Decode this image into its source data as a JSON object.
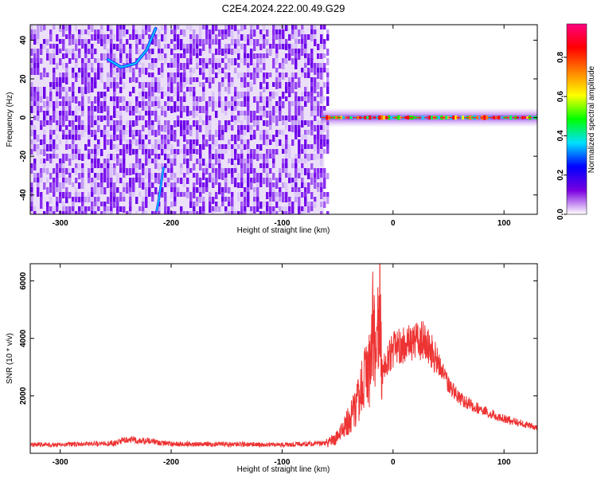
{
  "title": "C2E4.2024.222.00.49.G29",
  "chart_data": [
    {
      "type": "heatmap",
      "xlabel": "Height of straight line (km)",
      "ylabel": "Frequency (Hz)",
      "xlim": [
        -327,
        130
      ],
      "ylim": [
        -50,
        48
      ],
      "x_ticks": [
        -300,
        -200,
        -100,
        0,
        100
      ],
      "x_tick_labels": [
        "-300",
        "-200",
        "-100",
        "0",
        "100"
      ],
      "y_ticks": [
        -40,
        -20,
        0,
        20,
        40
      ],
      "y_tick_labels": [
        "-40",
        "-20",
        "0",
        "20",
        "40"
      ],
      "colorbar": {
        "label": "Normalized spectral amplitude",
        "range": [
          0.0,
          0.97
        ],
        "ticks": [
          0.0,
          0.2,
          0.4,
          0.6,
          0.8
        ],
        "tick_labels": [
          "0.0",
          "0.2",
          "0.4",
          "0.6",
          "0.8"
        ],
        "colormap": [
          "#ffffff",
          "#7a00e0",
          "#0000ff",
          "#00e0ff",
          "#00ff00",
          "#ffff00",
          "#ff8000",
          "#ff0000",
          "#ff0080"
        ]
      },
      "features": {
        "noise_region_x": [
          -327,
          -62
        ],
        "signal_line": {
          "x_range": [
            -65,
            130
          ],
          "frequency": 0,
          "peak_amplitude": 0.97
        },
        "noise_arc": [
          [
            -257,
            30
          ],
          [
            -245,
            26
          ],
          [
            -232,
            28
          ],
          [
            -222,
            35
          ],
          [
            -214,
            46
          ]
        ],
        "noise_streak": [
          [
            -207,
            -26
          ],
          [
            -209,
            -34
          ],
          [
            -211,
            -42
          ],
          [
            -213,
            -48
          ]
        ]
      }
    },
    {
      "type": "line",
      "xlabel": "Height of straight line (km)",
      "ylabel": "SNR (10 * v/v)",
      "xlim": [
        -327,
        130
      ],
      "ylim": [
        0,
        6600
      ],
      "x_ticks": [
        -300,
        -200,
        -100,
        0,
        100
      ],
      "x_tick_labels": [
        "-300",
        "-200",
        "-100",
        "0",
        "100"
      ],
      "y_ticks": [
        2000,
        4000,
        6000
      ],
      "y_tick_labels": [
        "2000",
        "4000",
        "6000"
      ],
      "series": [
        {
          "color": "#ee3333",
          "x": [
            -327,
            -300,
            -250,
            -240,
            -200,
            -150,
            -100,
            -60,
            -52,
            -45,
            -38,
            -30,
            -25,
            -20,
            -17,
            -15,
            -12,
            -10,
            -5,
            0,
            10,
            20,
            30,
            40,
            50,
            60,
            70,
            80,
            90,
            100,
            110,
            120,
            130
          ],
          "y": [
            300,
            300,
            350,
            500,
            320,
            320,
            300,
            350,
            500,
            800,
            1300,
            2000,
            2600,
            3000,
            6500,
            3200,
            6500,
            2800,
            3300,
            3600,
            3800,
            3950,
            3900,
            3200,
            2400,
            1900,
            1700,
            1500,
            1350,
            1200,
            1100,
            1000,
            900
          ]
        }
      ]
    }
  ]
}
